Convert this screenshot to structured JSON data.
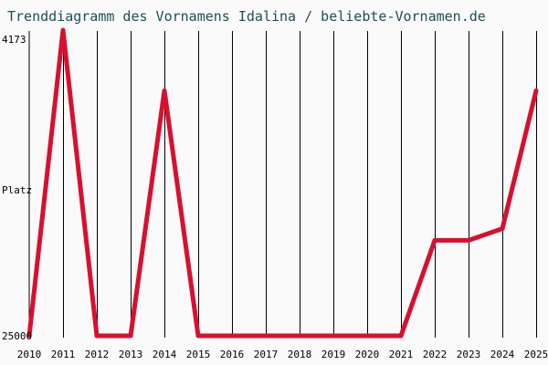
{
  "chart_data": {
    "type": "line",
    "title": "Trenddiagramm des Vornamens Idalina / beliebte-Vornamen.de",
    "xlabel": "",
    "ylabel": "Platz",
    "x": [
      2010,
      2011,
      2012,
      2013,
      2014,
      2015,
      2016,
      2017,
      2018,
      2019,
      2020,
      2021,
      2022,
      2023,
      2024,
      2025
    ],
    "x_tick_labels": [
      "2010",
      "2011",
      "2012",
      "2013",
      "2014",
      "2015",
      "2016",
      "2017",
      "2018",
      "2019",
      "2020",
      "2021",
      "2022",
      "2023",
      "2024",
      "2025"
    ],
    "y_tick_labels": [
      "4173",
      "25000"
    ],
    "ylim": [
      25000,
      4173
    ],
    "y_inverted": true,
    "grid": {
      "vertical": true,
      "horizontal": false
    },
    "series": [
      {
        "values": [
          25000,
          4173,
          25000,
          25000,
          8300,
          25000,
          25000,
          25000,
          25000,
          25000,
          25000,
          25000,
          18500,
          18500,
          17700,
          8300
        ]
      }
    ],
    "colors": {
      "line": "#d7102f",
      "title": "#1f4e57",
      "background": "#fafafa",
      "grid": "#000000"
    }
  }
}
